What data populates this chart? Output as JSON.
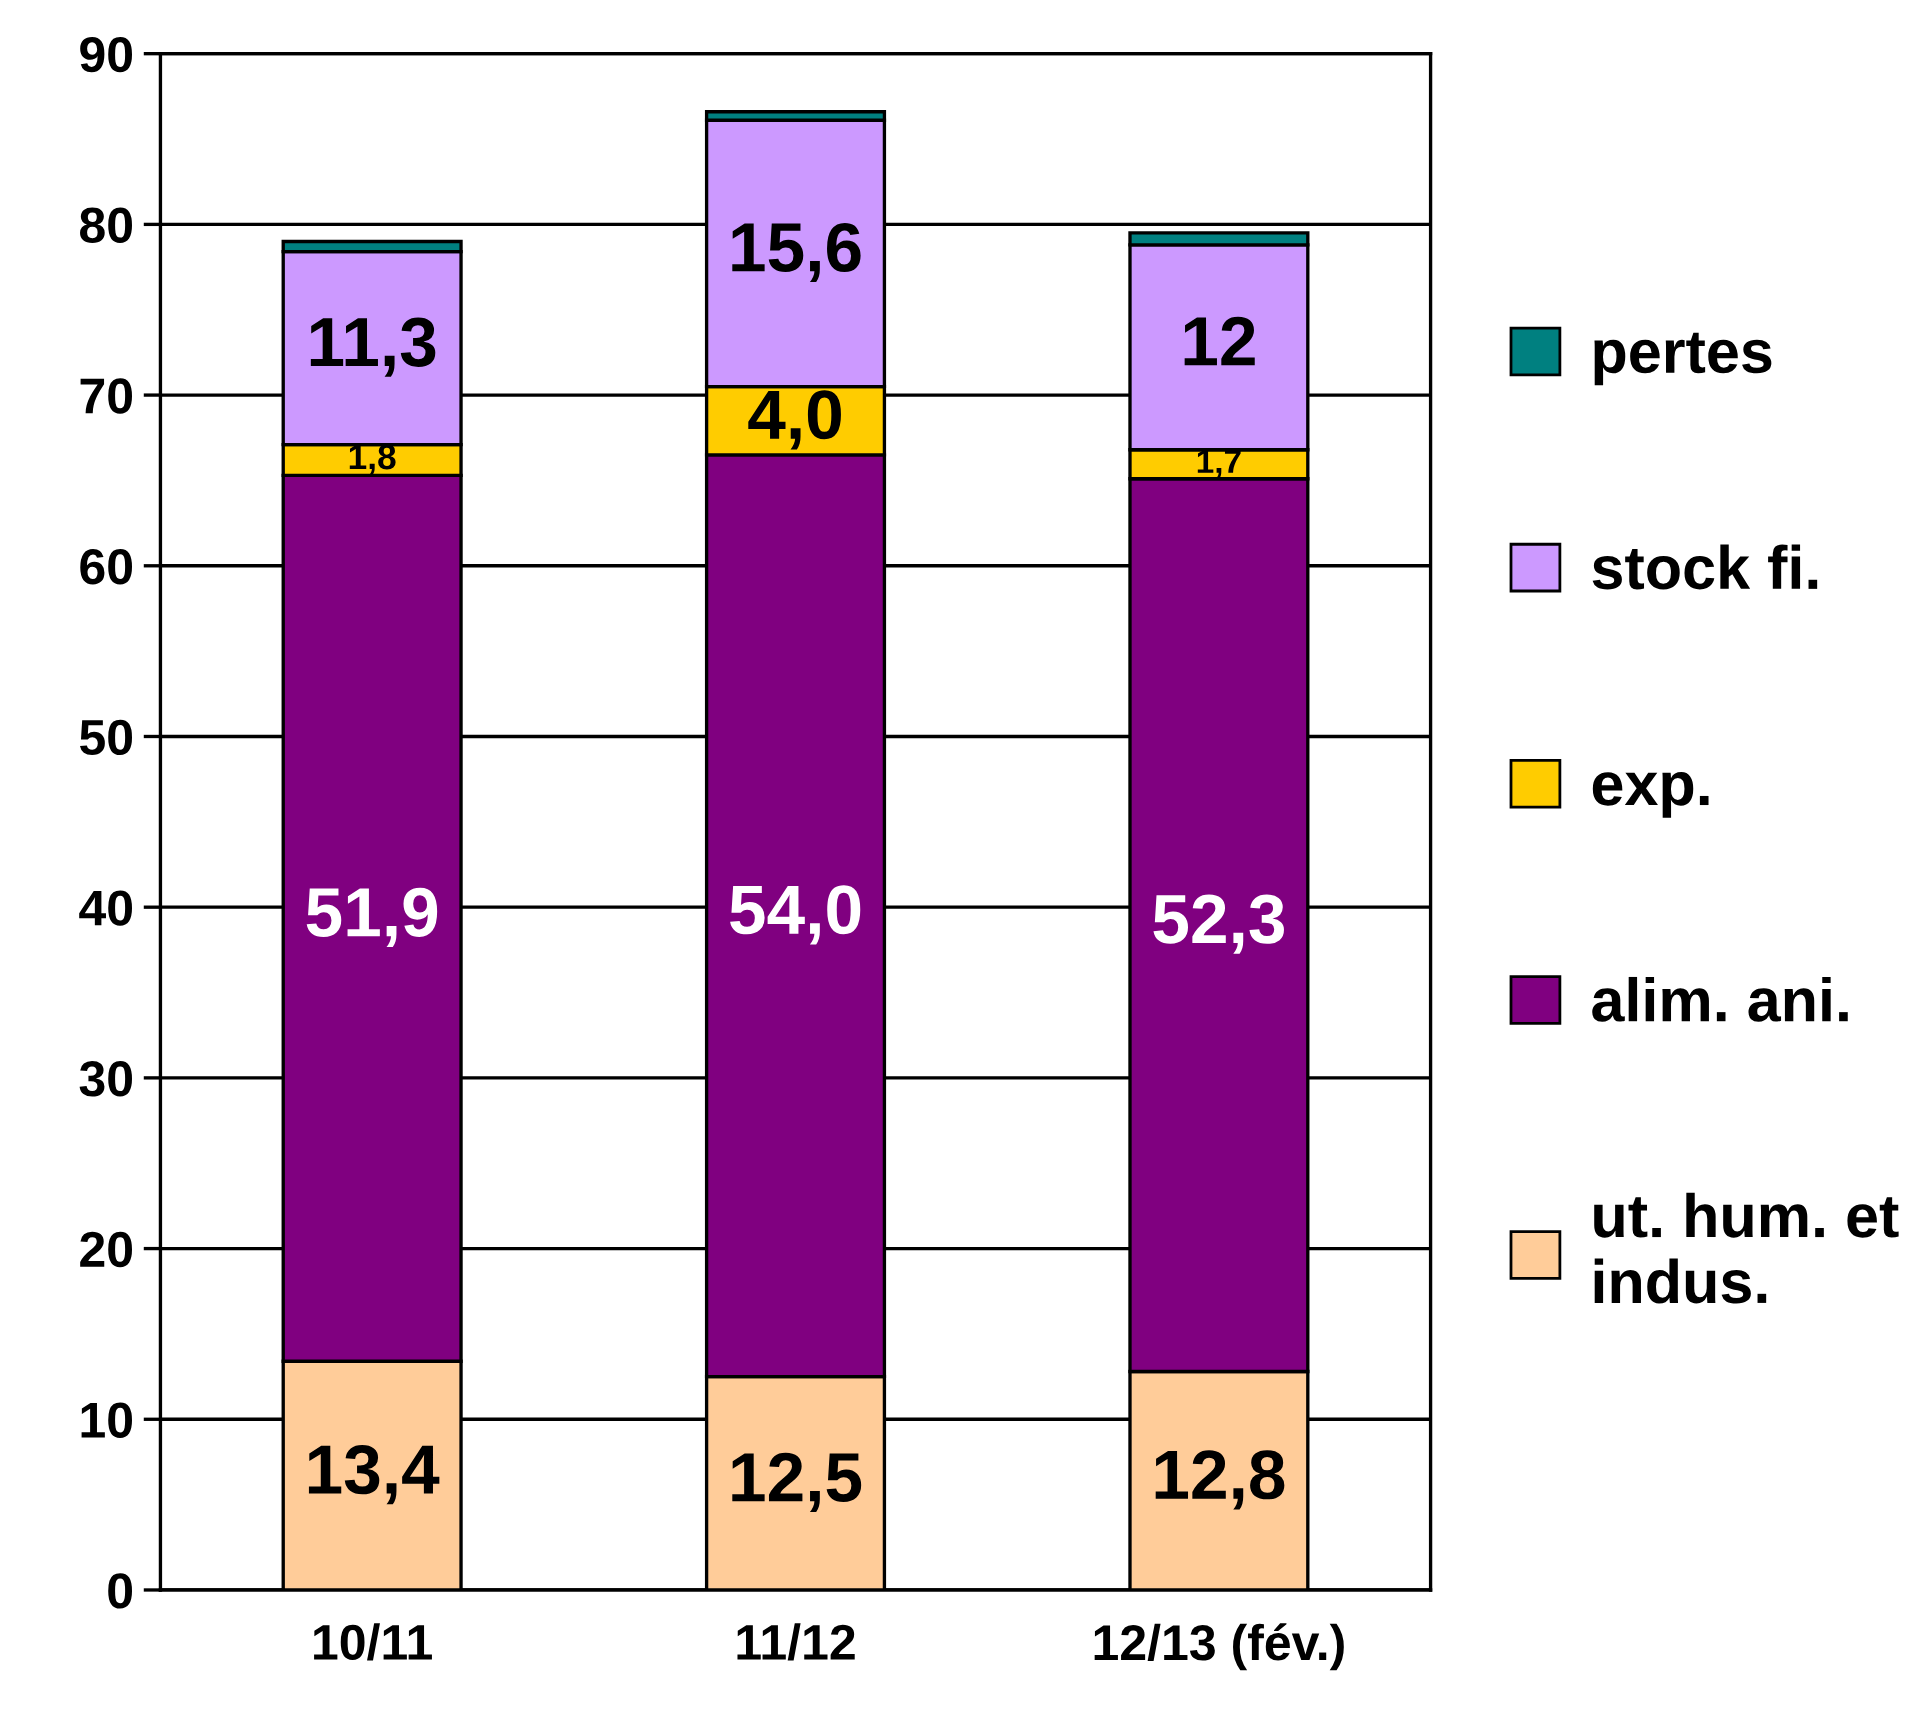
{
  "chart_data": {
    "type": "bar",
    "stacked": true,
    "categories": [
      "10/11",
      "11/12",
      "12/13 (fév.)"
    ],
    "series": [
      {
        "name": "ut. hum. et\nindus.",
        "color": "#ffcc99",
        "values": [
          13.4,
          12.5,
          12.8
        ],
        "value_labels": [
          "13,4",
          "12,5",
          "12,8"
        ]
      },
      {
        "name": "alim. ani.",
        "color": "#800080",
        "values": [
          51.9,
          54.0,
          52.3
        ],
        "value_labels": [
          "51,9",
          "54,0",
          "52,3"
        ]
      },
      {
        "name": "exp.",
        "color": "#ffcc00",
        "values": [
          1.8,
          4.0,
          1.7
        ],
        "value_labels": [
          "1,8",
          "4,0",
          "1,7"
        ]
      },
      {
        "name": "stock fi.",
        "color": "#cc99ff",
        "values": [
          11.3,
          15.6,
          12
        ],
        "value_labels": [
          "11,3",
          "15,6",
          "12"
        ]
      },
      {
        "name": "pertes",
        "color": "#008080",
        "values": [
          0.6,
          0.5,
          0.7
        ],
        "value_labels": [
          null,
          null,
          null
        ]
      }
    ],
    "ylim": [
      0,
      90
    ],
    "yticks": [
      0,
      10,
      20,
      30,
      40,
      50,
      60,
      70,
      80,
      90
    ],
    "grid": "y",
    "legend": "right"
  }
}
